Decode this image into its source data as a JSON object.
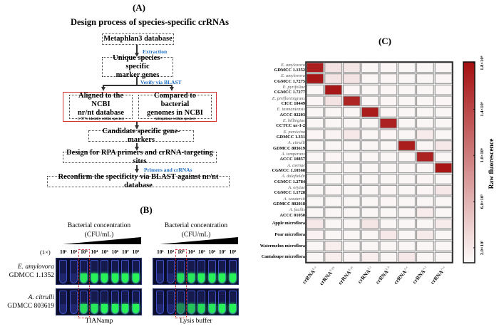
{
  "panelA": {
    "label": "(A)",
    "title": "Design process of species-specific crRNAs",
    "step1": "Metaphlan3 database",
    "edge1": "Extraction",
    "step2_line1": "Unique species-specific",
    "step2_line2": "marker genes",
    "edge2": "Verify via BLAST",
    "left_line1": "Aligned to the NCBI",
    "left_line2": "nr/nt database",
    "left_note": "(>97% identity within species)",
    "right_line1": "Compared to bacterial",
    "right_line2": "genomes in NCBI",
    "right_note": "(ubiquitous within species)",
    "step4": "Candidate specific gene-markers",
    "step5": "Design for RPA primers and crRNA-targeting sites",
    "edge3": "Primers and crRNAs",
    "step6": "Reconfirm the specificity via BLAST against nr/nt database"
  },
  "panelB": {
    "label": "(B)",
    "conc_title": "Bacterial concentration",
    "conc_unit": "(CFU/mL)",
    "dilution": "(1×)",
    "concentrations": [
      "10¹",
      "10²",
      "10³",
      "10⁴",
      "10⁵",
      "10⁶",
      "10⁷",
      "10⁸"
    ],
    "rows": [
      {
        "species": "E. amylovora",
        "strain": "GDMCC 1.1352"
      },
      {
        "species": "A. citrulli",
        "strain": "GDMCC 803619"
      }
    ],
    "methods": [
      "TIANamp",
      "Lysis buffer"
    ],
    "fluorescence": [
      [
        [
          0,
          0,
          0.9,
          0.95,
          0.95,
          0.95,
          0.95,
          0.95
        ],
        [
          0,
          0,
          0.85,
          0.9,
          0.95,
          0.95,
          0.95,
          0.95
        ]
      ],
      [
        [
          0,
          0,
          0.85,
          0.9,
          0.95,
          0.95,
          0.95,
          0.95
        ],
        [
          0,
          0,
          0.5,
          0.75,
          0.85,
          0.9,
          0.95,
          0.95
        ]
      ]
    ]
  },
  "chart_data": {
    "type": "heatmap",
    "label": "(C)",
    "rows": [
      {
        "species": "E. amylovora",
        "strain": "GDMCC 1.1352"
      },
      {
        "species": "E. amylovora",
        "strain": "CGMCC 1.7275"
      },
      {
        "species": "E. pyrifoliae",
        "strain": "CGMCC 1.7277"
      },
      {
        "species": "E. piriflorinigrans",
        "strain": "CICC 10449"
      },
      {
        "species": "E. tasmaniensis",
        "strain": "ACCC 02203"
      },
      {
        "species": "E. billingiae",
        "strain": "CCTCC uc-1-2"
      },
      {
        "species": "E. persicina",
        "strain": "GDMCC 1.331"
      },
      {
        "species": "A. citrulli",
        "strain": "GDMCC 803619"
      },
      {
        "species": "A. temperans",
        "strain": "ACCC 10857"
      },
      {
        "species": "A. avenae",
        "strain": "CGMCC 1.10568"
      },
      {
        "species": "A. dalafieldii",
        "strain": "CGMCC 1.2784"
      },
      {
        "species": "A. oryzae",
        "strain": "CGMCC 1.1728"
      },
      {
        "species": "A. wautersii",
        "strain": "GDMCC 802018"
      },
      {
        "species": "A. facilis",
        "strain": "ACCC 01050"
      },
      {
        "species": "",
        "strain": "Apple microflora"
      },
      {
        "species": "",
        "strain": "Pear microflora"
      },
      {
        "species": "",
        "strain": "Watermelon microflora"
      },
      {
        "species": "",
        "strain": "Cantaloupe microflora"
      }
    ],
    "columns": [
      {
        "base": "crRNA",
        "sup": "E.a"
      },
      {
        "base": "crRNA",
        "sup": "E.py"
      },
      {
        "base": "crRNA",
        "sup": "E.pi"
      },
      {
        "base": "crRNA",
        "sup": "E.t"
      },
      {
        "base": "crRNA",
        "sup": "E.b"
      },
      {
        "base": "crRNA",
        "sup": "A.c"
      },
      {
        "base": "crRNA",
        "sup": "A.t"
      },
      {
        "base": "crRNA",
        "sup": "A.a"
      }
    ],
    "values": [
      [
        1700000,
        250000,
        220000,
        100000,
        110000,
        100000,
        100000,
        110000
      ],
      [
        1750000,
        240000,
        230000,
        100000,
        110000,
        100000,
        100000,
        110000
      ],
      [
        100000,
        1750000,
        110000,
        100000,
        110000,
        100000,
        100000,
        110000
      ],
      [
        110000,
        240000,
        1650000,
        100000,
        110000,
        100000,
        100000,
        110000
      ],
      [
        100000,
        100000,
        100000,
        1720000,
        110000,
        100000,
        100000,
        100000
      ],
      [
        100000,
        100000,
        100000,
        100000,
        1680000,
        100000,
        100000,
        100000
      ],
      [
        110000,
        120000,
        200000,
        100000,
        110000,
        100000,
        180000,
        100000
      ],
      [
        100000,
        100000,
        100000,
        100000,
        100000,
        1700000,
        100000,
        200000
      ],
      [
        100000,
        110000,
        100000,
        100000,
        100000,
        100000,
        1680000,
        100000
      ],
      [
        100000,
        100000,
        100000,
        100000,
        100000,
        100000,
        100000,
        1760000
      ],
      [
        100000,
        100000,
        100000,
        100000,
        100000,
        100000,
        110000,
        100000
      ],
      [
        100000,
        110000,
        100000,
        100000,
        110000,
        100000,
        110000,
        200000
      ],
      [
        100000,
        100000,
        100000,
        100000,
        110000,
        100000,
        100000,
        100000
      ],
      [
        100000,
        100000,
        100000,
        100000,
        100000,
        100000,
        170000,
        100000
      ],
      [
        200000,
        100000,
        100000,
        220000,
        100000,
        100000,
        100000,
        180000
      ],
      [
        130000,
        100000,
        100000,
        100000,
        200000,
        100000,
        190000,
        100000
      ],
      [
        100000,
        160000,
        100000,
        100000,
        100000,
        100000,
        100000,
        100000
      ],
      [
        100000,
        160000,
        110000,
        160000,
        100000,
        200000,
        100000,
        100000
      ]
    ],
    "colorbar": {
      "label": "Raw fluorescence",
      "range": [
        70000,
        1810000
      ],
      "ticks": [
        200000,
        600000,
        1000000,
        1400000,
        1800000
      ],
      "tick_labels": [
        "2.0×10⁵",
        "6.0×10⁵",
        "1.0×10⁶",
        "1.4×10⁶",
        "1.8×10⁶"
      ],
      "low_color": "#fdfafa",
      "high_color": "#a50f0f"
    }
  }
}
